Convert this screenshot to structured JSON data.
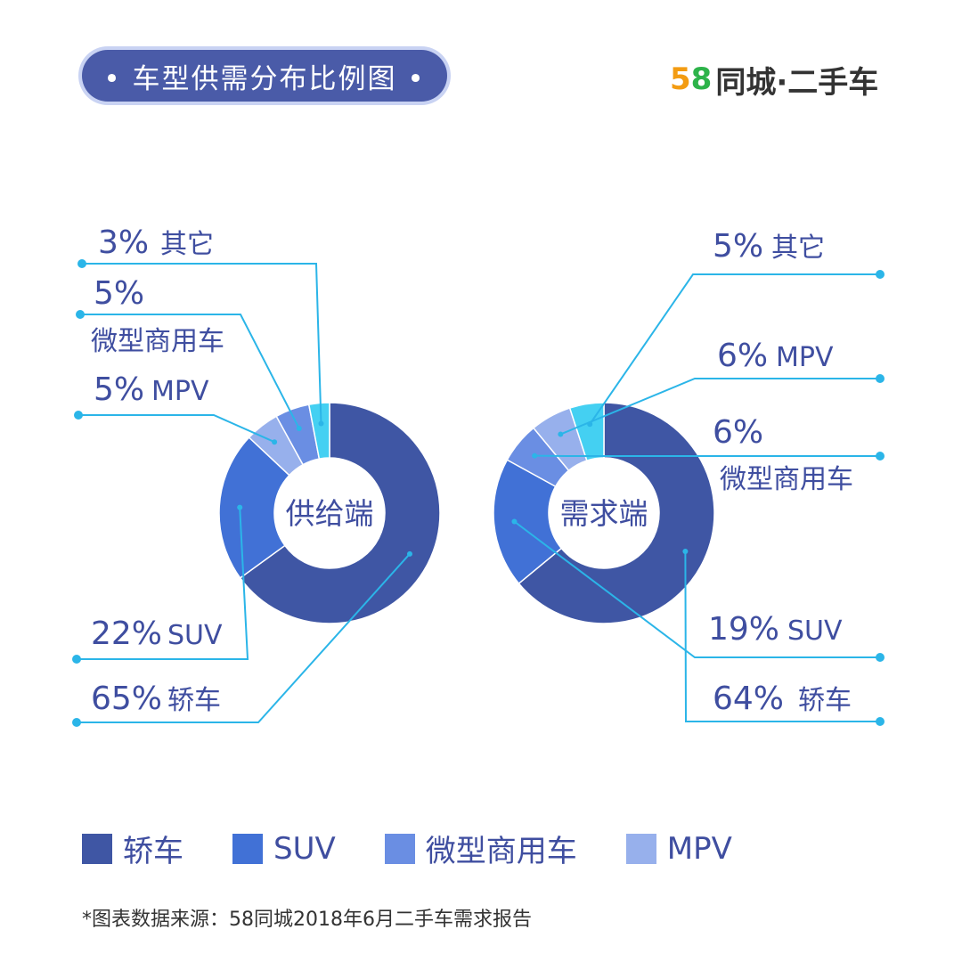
{
  "title": "• 车型供需分布比例图 •",
  "logo": {
    "num5": "5",
    "num8": "8",
    "text": "同城·二手车"
  },
  "colors": {
    "sedan": "#3f56a4",
    "suv": "#4171d6",
    "commercial": "#6a8ee3",
    "mpv": "#97b0ec",
    "other": "#44d0f2",
    "label_text": "#3f4ea0",
    "leader": "#2bb5e8"
  },
  "chart_data": [
    {
      "type": "pie",
      "center_label": "供给端",
      "slices": [
        {
          "key": "sedan",
          "name": "轿车",
          "value": 65,
          "label_pct": "65%",
          "label_name": "轿车"
        },
        {
          "key": "suv",
          "name": "SUV",
          "value": 22,
          "label_pct": "22%",
          "label_name": "SUV"
        },
        {
          "key": "mpv",
          "name": "MPV",
          "value": 5,
          "label_pct": "5%",
          "label_name": "MPV"
        },
        {
          "key": "commercial",
          "name": "微型商用车",
          "value": 5,
          "label_pct": "5%",
          "label_name": "微型商用车"
        },
        {
          "key": "other",
          "name": "其它",
          "value": 3,
          "label_pct": "3%",
          "label_name": "其它"
        }
      ]
    },
    {
      "type": "pie",
      "center_label": "需求端",
      "slices": [
        {
          "key": "sedan",
          "name": "轿车",
          "value": 64,
          "label_pct": "64%",
          "label_name": "轿车"
        },
        {
          "key": "suv",
          "name": "SUV",
          "value": 19,
          "label_pct": "19%",
          "label_name": "SUV"
        },
        {
          "key": "commercial",
          "name": "微型商用车",
          "value": 6,
          "label_pct": "6%",
          "label_name": "微型商用车"
        },
        {
          "key": "mpv",
          "name": "MPV",
          "value": 6,
          "label_pct": "6%",
          "label_name": "MPV"
        },
        {
          "key": "other",
          "name": "其它",
          "value": 5,
          "label_pct": "5%",
          "label_name": "其它"
        }
      ]
    }
  ],
  "legend": [
    {
      "key": "sedan",
      "label": "轿车"
    },
    {
      "key": "suv",
      "label": "SUV"
    },
    {
      "key": "commercial",
      "label": "微型商用车"
    },
    {
      "key": "mpv",
      "label": "MPV"
    }
  ],
  "source_note": "*图表数据来源：58同城2018年6月二手车需求报告"
}
